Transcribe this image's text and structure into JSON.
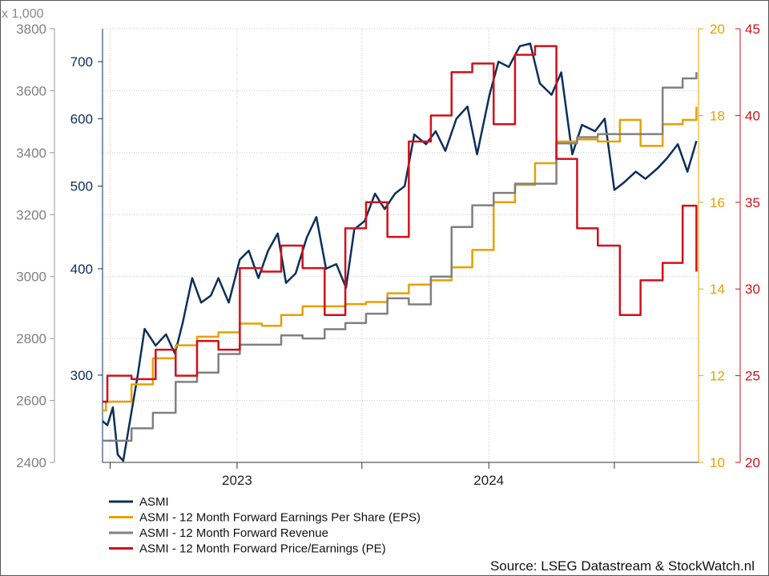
{
  "chart_data": {
    "type": "line",
    "multiplier_label": "x 1,000",
    "source": "Source: LSEG Datastream & StockWatch.nl",
    "x_labels": [
      "2023",
      "2024"
    ],
    "axes": {
      "revenue": {
        "ticks": [
          2400,
          2600,
          2800,
          3000,
          3200,
          3400,
          3600,
          3800
        ],
        "range": [
          2400,
          3800
        ],
        "color": "#808080"
      },
      "price": {
        "ticks": [
          300,
          400,
          500,
          600,
          700
        ],
        "range": [
          237,
          765
        ],
        "scale": "log",
        "color": "#0b2f5b"
      },
      "eps": {
        "ticks": [
          10,
          12,
          14,
          16,
          18,
          20
        ],
        "range": [
          10,
          20
        ],
        "color": "#e8a000"
      },
      "pe": {
        "ticks": [
          20,
          25,
          30,
          35,
          40,
          45
        ],
        "range": [
          20,
          45
        ],
        "color": "#d0101a"
      }
    },
    "series": [
      {
        "name": "ASMI",
        "color": "#0b2f5b",
        "axis": "price",
        "x": [
          "2022-06-20",
          "2022-06-27",
          "2022-07-05",
          "2022-07-12",
          "2022-07-20",
          "2022-07-28",
          "2022-08-10",
          "2022-08-20",
          "2022-09-05",
          "2022-09-20",
          "2022-10-03",
          "2022-10-14",
          "2022-10-28",
          "2022-11-10",
          "2022-11-24",
          "2022-12-05",
          "2022-12-20",
          "2023-01-05",
          "2023-01-18",
          "2023-02-01",
          "2023-02-15",
          "2023-03-01",
          "2023-03-13",
          "2023-03-27",
          "2023-04-12",
          "2023-04-26",
          "2023-05-10",
          "2023-05-25",
          "2023-06-08",
          "2023-06-20",
          "2023-07-05",
          "2023-07-20",
          "2023-08-03",
          "2023-08-18",
          "2023-09-01",
          "2023-09-15",
          "2023-10-02",
          "2023-10-16",
          "2023-10-30",
          "2023-11-15",
          "2023-12-01",
          "2023-12-15",
          "2024-01-02",
          "2024-01-15",
          "2024-01-30",
          "2024-02-15",
          "2024-03-01",
          "2024-03-15",
          "2024-04-01",
          "2024-04-15",
          "2024-05-01",
          "2024-05-15",
          "2024-06-03",
          "2024-06-17",
          "2024-07-01",
          "2024-07-15",
          "2024-08-01",
          "2024-08-15",
          "2024-09-02",
          "2024-09-16",
          "2024-10-01",
          "2024-10-15",
          "2024-10-28"
        ],
        "values": [
          265,
          262,
          275,
          242,
          238,
          260,
          300,
          340,
          325,
          335,
          318,
          345,
          390,
          365,
          372,
          390,
          365,
          410,
          420,
          390,
          420,
          440,
          385,
          395,
          435,
          460,
          400,
          405,
          380,
          445,
          455,
          490,
          470,
          490,
          500,
          575,
          560,
          580,
          550,
          600,
          620,
          545,
          640,
          700,
          690,
          730,
          735,
          660,
          640,
          680,
          545,
          590,
          580,
          600,
          495,
          505,
          520,
          510,
          525,
          540,
          560,
          520,
          565
        ]
      },
      {
        "name": "ASMI - 12 Month Forward Earnings Per Share (EPS)",
        "color": "#e8a000",
        "axis": "eps",
        "x": [
          "2022-06-20",
          "2022-06-25",
          "2022-08-01",
          "2022-09-01",
          "2022-10-04",
          "2022-11-04",
          "2022-12-05",
          "2023-01-05",
          "2023-02-06",
          "2023-03-06",
          "2023-04-06",
          "2023-05-08",
          "2023-06-07",
          "2023-07-07",
          "2023-08-07",
          "2023-09-07",
          "2023-10-09",
          "2023-11-08",
          "2023-12-08",
          "2024-01-08",
          "2024-02-08",
          "2024-03-08",
          "2024-04-08",
          "2024-05-08",
          "2024-06-07",
          "2024-07-09",
          "2024-08-08",
          "2024-09-09",
          "2024-10-08",
          "2024-10-28"
        ],
        "values": [
          11.2,
          11.4,
          11.8,
          12.4,
          12.7,
          12.9,
          13.0,
          13.2,
          13.15,
          13.4,
          13.6,
          13.6,
          13.65,
          13.7,
          13.9,
          14.1,
          14.2,
          14.5,
          14.9,
          16.0,
          16.4,
          16.9,
          17.4,
          17.45,
          17.4,
          17.9,
          17.3,
          17.8,
          17.9,
          18.2
        ]
      },
      {
        "name": "ASMI - 12 Month Forward Revenue",
        "color": "#808080",
        "axis": "revenue",
        "x": [
          "2022-06-20",
          "2022-06-28",
          "2022-08-01",
          "2022-09-01",
          "2022-10-04",
          "2022-11-04",
          "2022-12-05",
          "2023-01-05",
          "2023-02-06",
          "2023-03-06",
          "2023-04-06",
          "2023-05-08",
          "2023-06-07",
          "2023-07-07",
          "2023-08-07",
          "2023-09-07",
          "2023-10-09",
          "2023-11-08",
          "2023-12-08",
          "2024-01-08",
          "2024-02-08",
          "2024-03-08",
          "2024-04-08",
          "2024-05-08",
          "2024-06-07",
          "2024-07-09",
          "2024-08-08",
          "2024-09-09",
          "2024-10-08",
          "2024-10-28"
        ],
        "values": [
          2470,
          2470,
          2510,
          2560,
          2660,
          2690,
          2750,
          2780,
          2780,
          2810,
          2800,
          2830,
          2850,
          2880,
          2930,
          2910,
          3000,
          3160,
          3230,
          3270,
          3300,
          3300,
          3430,
          3450,
          3460,
          3460,
          3460,
          3610,
          3640,
          3660
        ]
      },
      {
        "name": "ASMI - 12 Month Forward Price/Earnings (PE)",
        "color": "#d0101a",
        "axis": "pe",
        "x": [
          "2022-06-20",
          "2022-06-27",
          "2022-08-01",
          "2022-09-05",
          "2022-10-04",
          "2022-11-04",
          "2022-12-05",
          "2023-01-05",
          "2023-02-06",
          "2023-03-06",
          "2023-04-06",
          "2023-05-08",
          "2023-06-07",
          "2023-07-07",
          "2023-08-07",
          "2023-09-07",
          "2023-10-09",
          "2023-11-08",
          "2023-12-08",
          "2024-01-08",
          "2024-02-08",
          "2024-03-08",
          "2024-04-08",
          "2024-05-08",
          "2024-06-07",
          "2024-07-09",
          "2024-08-08",
          "2024-09-09",
          "2024-10-08",
          "2024-10-28"
        ],
        "values": [
          23.5,
          25.0,
          24.8,
          26.5,
          25.0,
          27.0,
          26.5,
          31.2,
          31.0,
          32.5,
          31.2,
          28.5,
          33.5,
          35.0,
          33.0,
          38.5,
          40.0,
          42.5,
          43.0,
          39.5,
          43.5,
          44.0,
          37.5,
          33.5,
          32.5,
          28.5,
          30.5,
          31.5,
          34.8,
          31.0
        ]
      }
    ],
    "grid": "dotted",
    "legend_position": "bottom-left"
  }
}
